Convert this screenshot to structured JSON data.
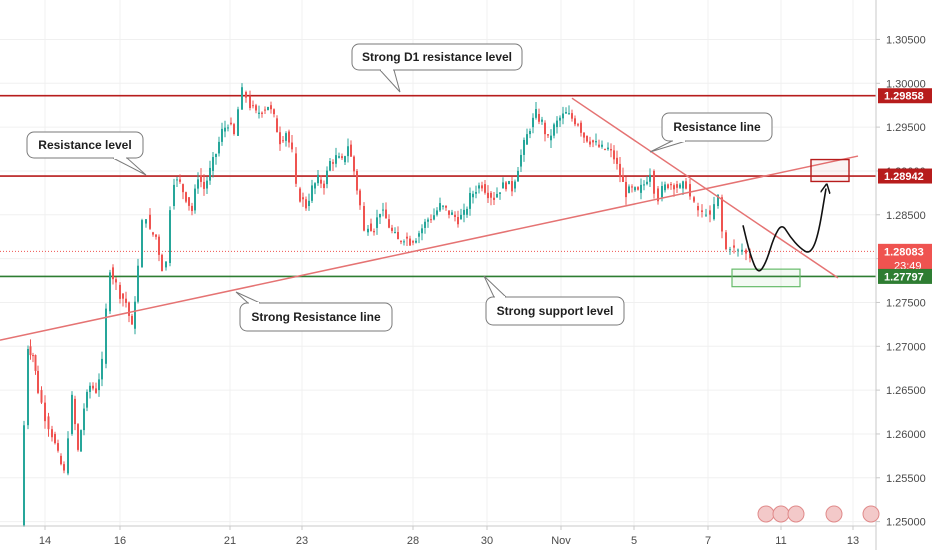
{
  "chart_data": {
    "type": "candlestick",
    "title": "",
    "ylim": [
      1.2495,
      1.3095
    ],
    "x_ticks": [
      "14",
      "16",
      "21",
      "23",
      "28",
      "30",
      "Nov",
      "5",
      "7",
      "11",
      "13"
    ],
    "y_ticks": [
      "1.30500",
      "1.30000",
      "1.29500",
      "1.29000",
      "1.28500",
      "1.28000",
      "1.27500",
      "1.27000",
      "1.26500",
      "1.26000",
      "1.25500",
      "1.25000"
    ],
    "y_tick_values": [
      1.305,
      1.3,
      1.295,
      1.29,
      1.285,
      1.28,
      1.275,
      1.27,
      1.265,
      1.26,
      1.255,
      1.25
    ],
    "colors": {
      "up": "#26a69a",
      "down": "#ef5350",
      "resistance": "#b71c1c",
      "support": "#2e7d32",
      "trendline": "#e57373",
      "current": "#ef5350",
      "arrow": "#111111"
    },
    "horizontal_levels": [
      {
        "label": "1.29858",
        "value": 1.29858,
        "color": "#b71c1c"
      },
      {
        "label": "1.28942",
        "value": 1.28942,
        "color": "#b71c1c"
      },
      {
        "label": "1.28083",
        "value": 1.28083,
        "color": "#ef5350",
        "countdown": "23:49"
      },
      {
        "label": "1.27797",
        "value": 1.27797,
        "color": "#2e7d32"
      }
    ],
    "trendlines": [
      {
        "name": "strong-resistance-line",
        "from": [
          0,
          1.2707
        ],
        "to": [
          858,
          1.2917
        ]
      },
      {
        "name": "resistance-line",
        "from": [
          572,
          1.2983
        ],
        "to": [
          838,
          1.2778
        ]
      }
    ],
    "annotations": [
      {
        "text": "Strong D1 resistance level",
        "name": "annotation-strong-d1-resistance"
      },
      {
        "text": "Resistance level",
        "name": "annotation-resistance-level"
      },
      {
        "text": "Resistance line",
        "name": "annotation-resistance-line"
      },
      {
        "text": "Strong Resistance line",
        "name": "annotation-strong-resistance-line"
      },
      {
        "text": "Strong support level",
        "name": "annotation-strong-support-level"
      }
    ],
    "projection": {
      "support_box": [
        1.2788,
        1.2768
      ],
      "target_box": [
        1.2913,
        1.2888
      ]
    },
    "price_path": [
      [
        20,
        1.2495
      ],
      [
        24,
        1.261
      ],
      [
        28,
        1.27
      ],
      [
        33,
        1.269
      ],
      [
        38,
        1.265
      ],
      [
        45,
        1.262
      ],
      [
        52,
        1.26
      ],
      [
        58,
        1.2575
      ],
      [
        64,
        1.2555
      ],
      [
        68,
        1.26
      ],
      [
        72,
        1.264
      ],
      [
        78,
        1.258
      ],
      [
        84,
        1.263
      ],
      [
        90,
        1.2655
      ],
      [
        96,
        1.265
      ],
      [
        102,
        1.268
      ],
      [
        106,
        1.274
      ],
      [
        110,
        1.279
      ],
      [
        116,
        1.277
      ],
      [
        120,
        1.276
      ],
      [
        126,
        1.275
      ],
      [
        132,
        1.272
      ],
      [
        138,
        1.279
      ],
      [
        142,
        1.284
      ],
      [
        146,
        1.285
      ],
      [
        150,
        1.283
      ],
      [
        156,
        1.2825
      ],
      [
        162,
        1.279
      ],
      [
        166,
        1.2795
      ],
      [
        170,
        1.286
      ],
      [
        174,
        1.289
      ],
      [
        180,
        1.2885
      ],
      [
        186,
        1.287
      ],
      [
        192,
        1.2855
      ],
      [
        198,
        1.2895
      ],
      [
        204,
        1.288
      ],
      [
        210,
        1.29
      ],
      [
        216,
        1.292
      ],
      [
        222,
        1.2945
      ],
      [
        228,
        1.2955
      ],
      [
        234,
        1.294
      ],
      [
        238,
        1.297
      ],
      [
        242,
        1.299
      ],
      [
        246,
        1.2985
      ],
      [
        250,
        1.2975
      ],
      [
        256,
        1.2965
      ],
      [
        262,
        1.297
      ],
      [
        268,
        1.2975
      ],
      [
        274,
        1.296
      ],
      [
        280,
        1.2935
      ],
      [
        286,
        1.2945
      ],
      [
        292,
        1.292
      ],
      [
        296,
        1.288
      ],
      [
        300,
        1.287
      ],
      [
        306,
        1.286
      ],
      [
        312,
        1.288
      ],
      [
        318,
        1.289
      ],
      [
        324,
        1.2885
      ],
      [
        330,
        1.291
      ],
      [
        336,
        1.2915
      ],
      [
        342,
        1.291
      ],
      [
        348,
        1.293
      ],
      [
        354,
        1.29
      ],
      [
        360,
        1.286
      ],
      [
        364,
        1.283
      ],
      [
        368,
        1.284
      ],
      [
        374,
        1.2835
      ],
      [
        380,
        1.2855
      ],
      [
        386,
        1.2845
      ],
      [
        392,
        1.283
      ],
      [
        398,
        1.282
      ],
      [
        404,
        1.2825
      ],
      [
        410,
        1.282
      ],
      [
        416,
        1.2825
      ],
      [
        422,
        1.2835
      ],
      [
        428,
        1.2845
      ],
      [
        434,
        1.285
      ],
      [
        440,
        1.286
      ],
      [
        446,
        1.2855
      ],
      [
        452,
        1.285
      ],
      [
        458,
        1.2845
      ],
      [
        464,
        1.285
      ],
      [
        470,
        1.287
      ],
      [
        476,
        1.288
      ],
      [
        482,
        1.2885
      ],
      [
        488,
        1.2875
      ],
      [
        494,
        1.287
      ],
      [
        500,
        1.288
      ],
      [
        506,
        1.2885
      ],
      [
        512,
        1.288
      ],
      [
        518,
        1.2905
      ],
      [
        524,
        1.293
      ],
      [
        530,
        1.295
      ],
      [
        536,
        1.2965
      ],
      [
        542,
        1.2955
      ],
      [
        548,
        1.2935
      ],
      [
        554,
        1.295
      ],
      [
        560,
        1.296
      ],
      [
        566,
        1.2965
      ],
      [
        572,
        1.296
      ],
      [
        578,
        1.2955
      ],
      [
        584,
        1.294
      ],
      [
        590,
        1.2935
      ],
      [
        596,
        1.293
      ],
      [
        602,
        1.2925
      ],
      [
        608,
        1.2925
      ],
      [
        614,
        1.2915
      ],
      [
        620,
        1.2895
      ],
      [
        626,
        1.2875
      ],
      [
        632,
        1.2878
      ],
      [
        638,
        1.2875
      ],
      [
        644,
        1.2885
      ],
      [
        650,
        1.29
      ],
      [
        654,
        1.288
      ],
      [
        658,
        1.287
      ],
      [
        662,
        1.2878
      ],
      [
        668,
        1.2885
      ],
      [
        674,
        1.2885
      ],
      [
        680,
        1.288
      ],
      [
        686,
        1.2885
      ],
      [
        690,
        1.287
      ],
      [
        694,
        1.286
      ],
      [
        698,
        1.2855
      ],
      [
        702,
        1.285
      ],
      [
        706,
        1.2855
      ],
      [
        710,
        1.2845
      ],
      [
        714,
        1.286
      ],
      [
        718,
        1.287
      ],
      [
        722,
        1.283
      ],
      [
        726,
        1.281
      ],
      [
        730,
        1.2815
      ],
      [
        734,
        1.281
      ],
      [
        738,
        1.2808
      ],
      [
        742,
        1.281
      ],
      [
        746,
        1.2805
      ],
      [
        750,
        1.2803
      ]
    ],
    "forecast_path": [
      [
        743,
        1.2838
      ],
      [
        750,
        1.2805
      ],
      [
        758,
        1.2782
      ],
      [
        766,
        1.2795
      ],
      [
        774,
        1.2825
      ],
      [
        782,
        1.284
      ],
      [
        790,
        1.2825
      ],
      [
        800,
        1.2812
      ],
      [
        810,
        1.2805
      ],
      [
        818,
        1.2825
      ],
      [
        826,
        1.288
      ]
    ]
  }
}
